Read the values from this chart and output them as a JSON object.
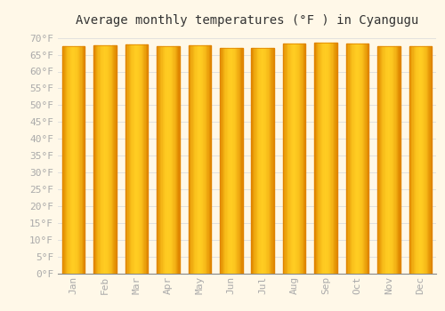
{
  "title": "Average monthly temperatures (°F ) in Cyangugu",
  "months": [
    "Jan",
    "Feb",
    "Mar",
    "Apr",
    "May",
    "Jun",
    "Jul",
    "Aug",
    "Sep",
    "Oct",
    "Nov",
    "Dec"
  ],
  "values": [
    67.6,
    67.8,
    68.0,
    67.5,
    67.8,
    67.1,
    66.9,
    68.2,
    68.7,
    68.4,
    67.5,
    67.5
  ],
  "bar_color_main": "#FFB300",
  "bar_color_edge": "#E08000",
  "bar_color_light": "#FFCC44",
  "background_color": "#FFF8E8",
  "grid_color": "#DDDDDD",
  "ylim": [
    0,
    72
  ],
  "yticks": [
    0,
    5,
    10,
    15,
    20,
    25,
    30,
    35,
    40,
    45,
    50,
    55,
    60,
    65,
    70
  ],
  "title_fontsize": 10,
  "tick_fontsize": 8,
  "tick_color": "#AAAAAA",
  "font_family": "monospace"
}
